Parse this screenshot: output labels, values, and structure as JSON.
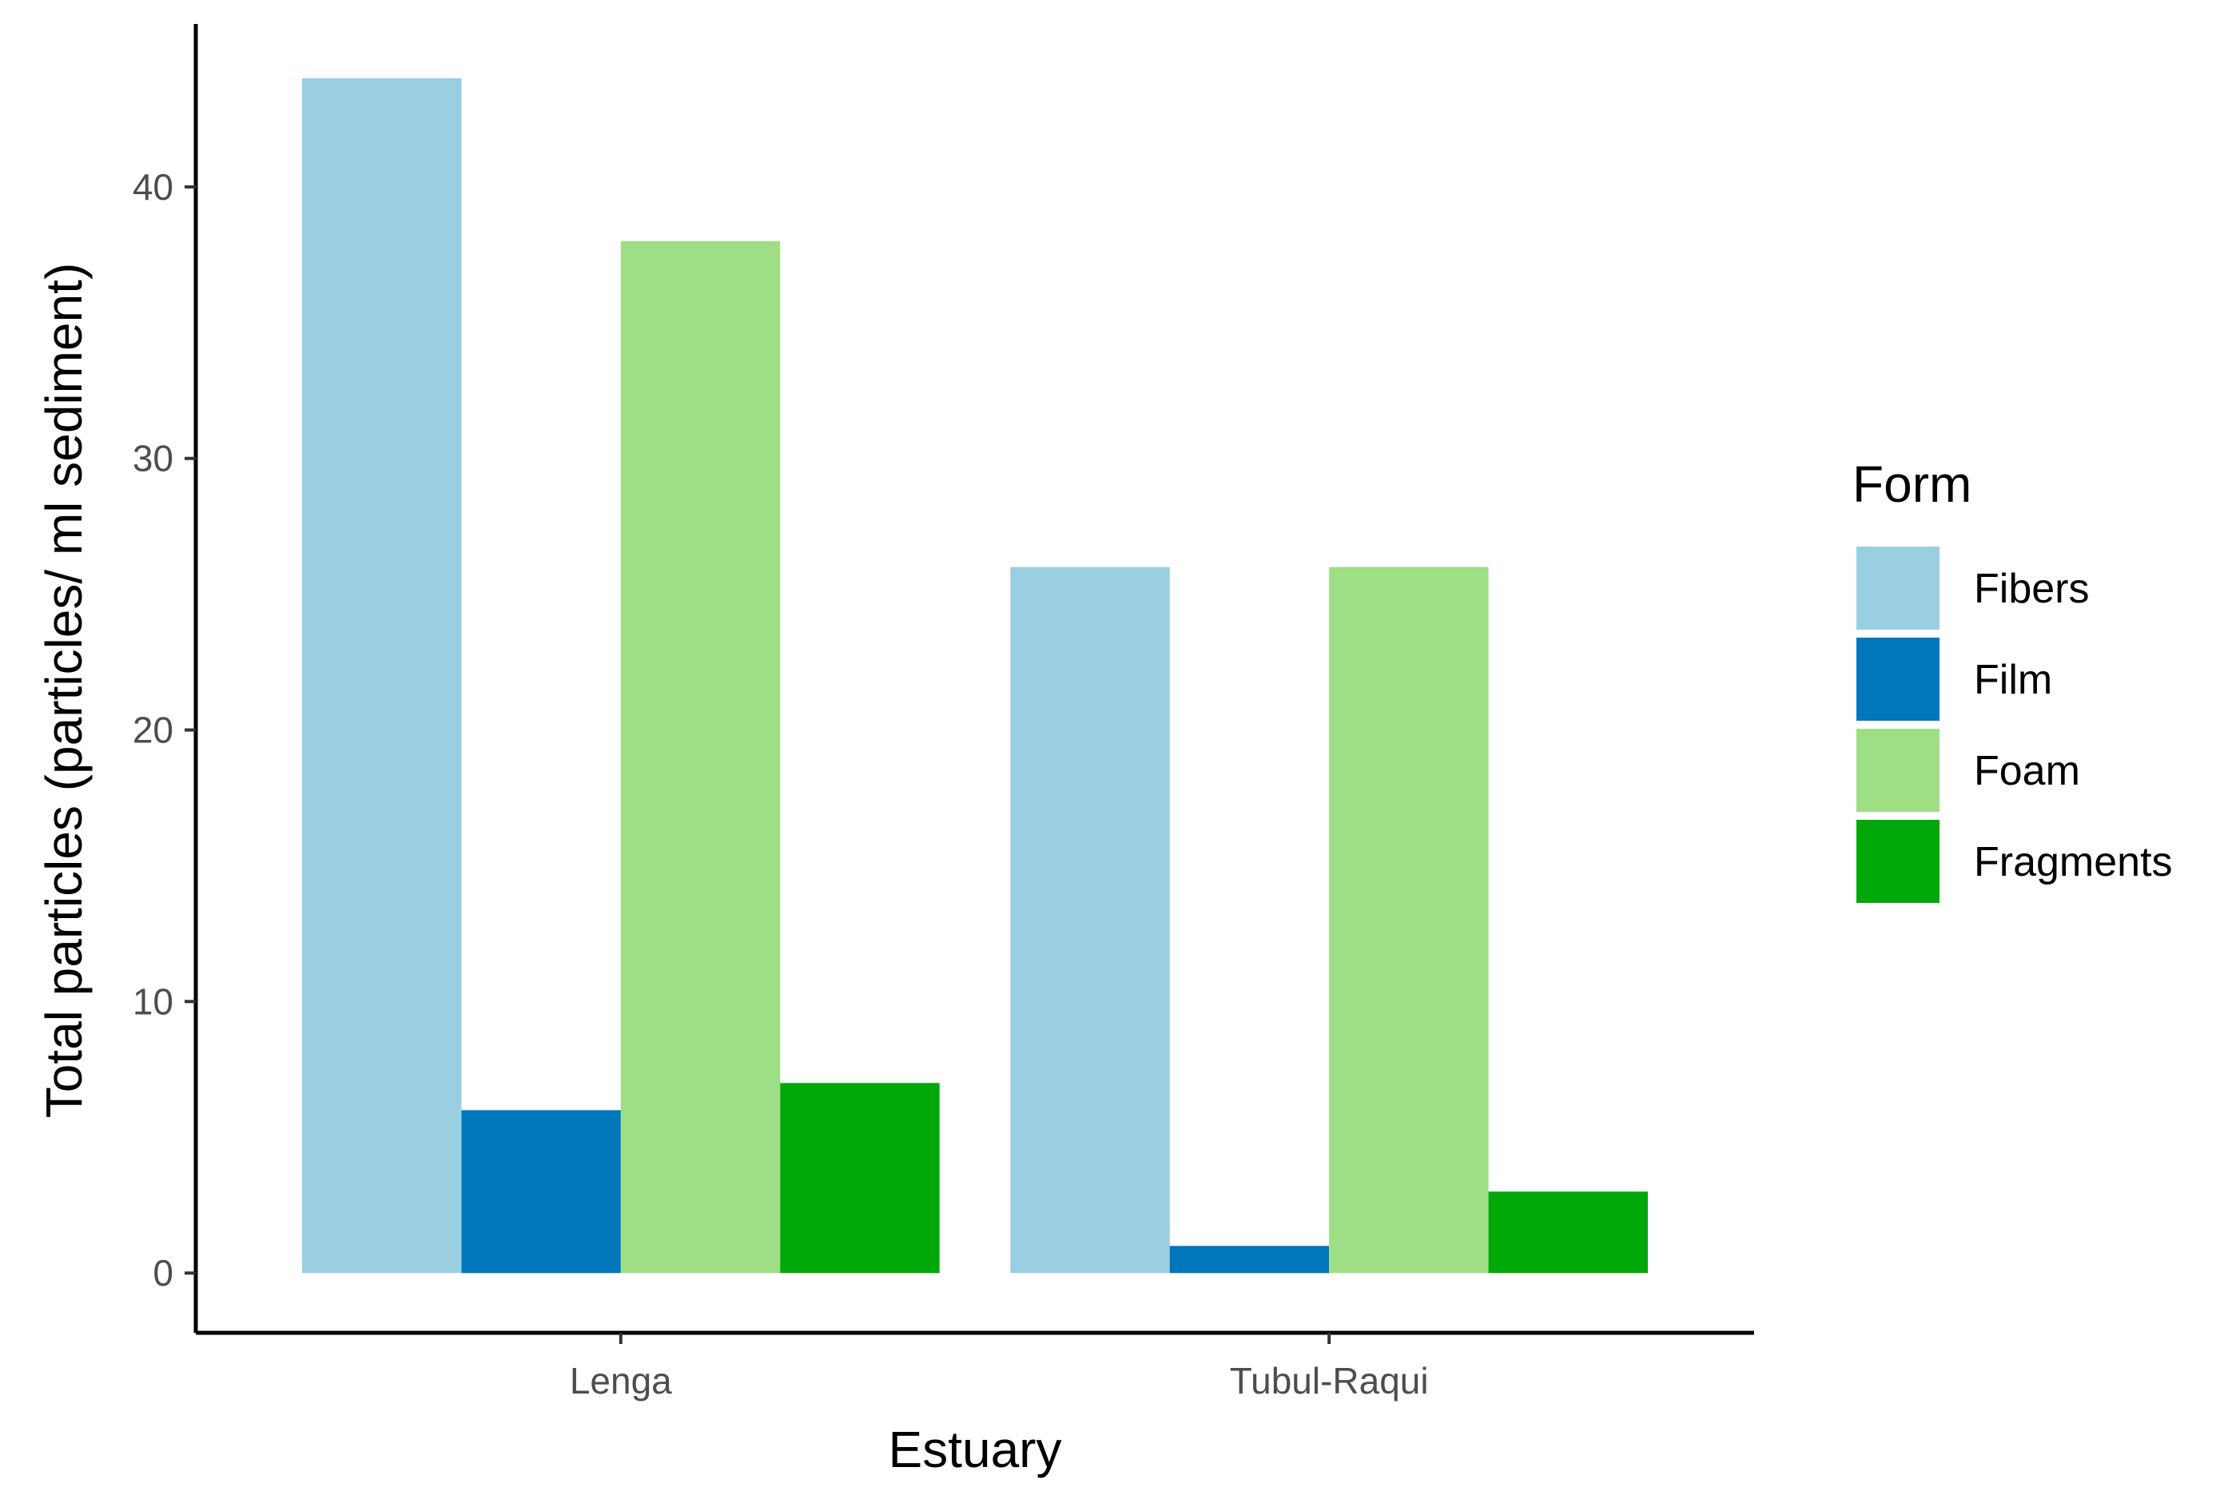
{
  "chart_data": {
    "type": "bar",
    "categories": [
      "Lenga",
      "Tubul-Raqui"
    ],
    "series": [
      {
        "name": "Fibers",
        "values": [
          44,
          26
        ],
        "color": "#9ACFE2"
      },
      {
        "name": "Film",
        "values": [
          6,
          1
        ],
        "color": "#0077BB"
      },
      {
        "name": "Foam",
        "values": [
          38,
          26
        ],
        "color": "#9EDF85"
      },
      {
        "name": "Fragments",
        "values": [
          7,
          3
        ],
        "color": "#00A80A"
      }
    ],
    "xlabel": "Estuary",
    "ylabel": "Total particles (particles/ ml sediment)",
    "yticks": [
      0,
      10,
      20,
      30,
      40
    ],
    "ylim": [
      -2.2,
      46
    ],
    "legend": {
      "title": "Form",
      "position": "right"
    },
    "grid": false
  }
}
